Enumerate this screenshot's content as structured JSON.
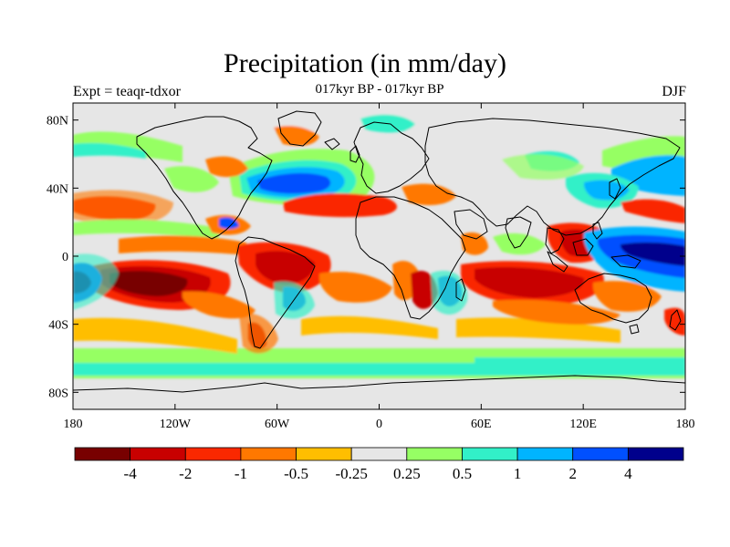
{
  "map": {
    "title": "Precipitation (in mm/day)",
    "subtitle": "017kyr BP - 017kyr BP",
    "left_label": "Expt = teaqr-tdxor",
    "right_label": "DJF",
    "projection": "cylindrical-equidistant",
    "lon_range": [
      -180,
      180
    ],
    "lat_range": [
      -90,
      90
    ],
    "background_color": "#e6e6e6",
    "x_ticks": [
      {
        "value": -180,
        "label": "180"
      },
      {
        "value": -120,
        "label": "120W"
      },
      {
        "value": -60,
        "label": "60W"
      },
      {
        "value": 0,
        "label": "0"
      },
      {
        "value": 60,
        "label": "60E"
      },
      {
        "value": 120,
        "label": "120E"
      },
      {
        "value": 180,
        "label": "180"
      }
    ],
    "y_ticks": [
      {
        "value": 80,
        "label": "80N"
      },
      {
        "value": 40,
        "label": "40N"
      },
      {
        "value": 0,
        "label": "0"
      },
      {
        "value": -40,
        "label": "40S"
      },
      {
        "value": -80,
        "label": "80S"
      }
    ]
  },
  "legend": {
    "colors": [
      "#780000",
      "#c80000",
      "#fa2800",
      "#ff7800",
      "#ffbe00",
      "#e6e6e6",
      "#96ff64",
      "#32f0c8",
      "#00b4ff",
      "#0050ff",
      "#00008c"
    ],
    "labels": [
      "-4",
      "-2",
      "-1",
      "-0.5",
      "-0.25",
      "0.25",
      "0.5",
      "1",
      "2",
      "4"
    ]
  }
}
